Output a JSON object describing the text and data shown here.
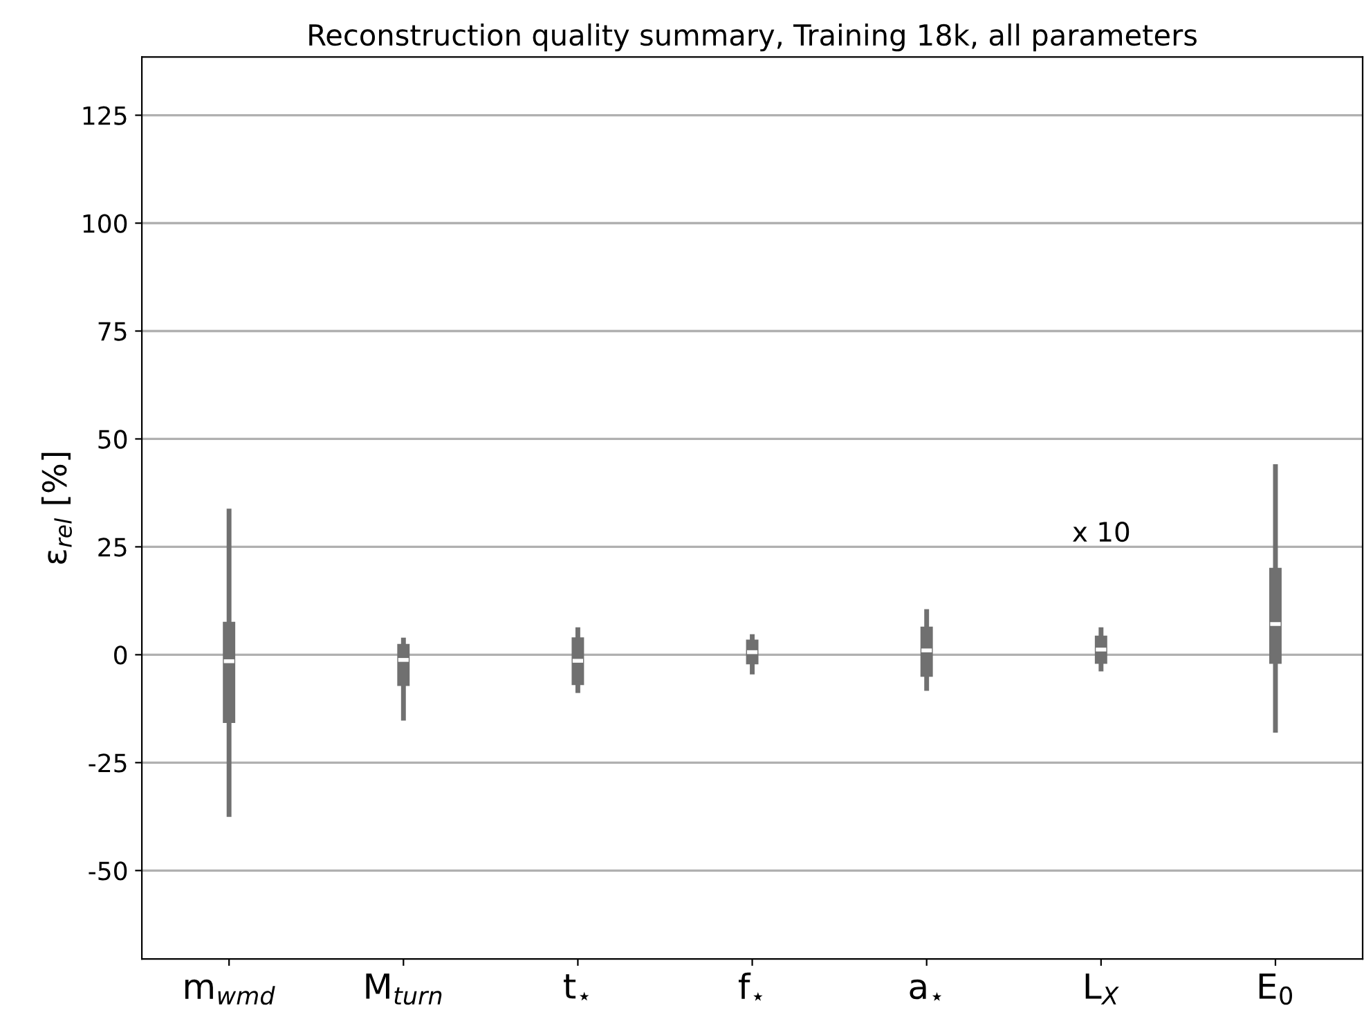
{
  "chart_data": {
    "type": "box",
    "title": "Reconstruction quality summary, Training 18k, all parameters",
    "ylabel": "ε$_{rel}$ [%]",
    "categories": [
      "m$_{wmd}$",
      "M$_{turn}$",
      "t$_{⋆}$",
      "f$_{⋆}$",
      "a$_{⋆}$",
      "L$_{X}$",
      "E$_{0}$"
    ],
    "color": "#707070",
    "boxes": [
      {
        "low": -37,
        "q1": -15.6,
        "median": -1.5,
        "q3": 7.4,
        "high": 33.3
      },
      {
        "low": -14.7,
        "q1": -7,
        "median": -1.2,
        "q3": 2.3,
        "high": 3.4
      },
      {
        "low": -8.3,
        "q1": -6.8,
        "median": -1.4,
        "q3": 3.8,
        "high": 5.8
      },
      {
        "low": -4,
        "q1": -2,
        "median": 0.6,
        "q3": 3.3,
        "high": 4.2
      },
      {
        "low": -7.8,
        "q1": -4.9,
        "median": 1,
        "q3": 6.3,
        "high": 10
      },
      {
        "low": -3.3,
        "q1": -1.9,
        "median": 1.2,
        "q3": 4.2,
        "high": 5.8
      },
      {
        "low": -17.5,
        "q1": -1.9,
        "median": 7.1,
        "q3": 19.9,
        "high": 43.6
      }
    ],
    "annotations": [
      "x 10"
    ],
    "ylim": [
      -70.5,
      138.5
    ],
    "yticks": [
      -50,
      -25,
      0,
      25,
      50,
      75,
      100,
      125
    ],
    "grid": "y",
    "legend": false
  }
}
